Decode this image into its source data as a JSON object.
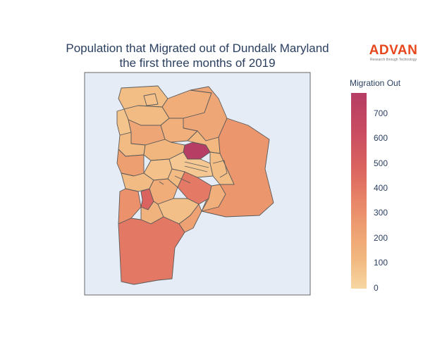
{
  "title": {
    "line1": "Population that Migrated out of Dundalk Maryland",
    "line2": "the first three months of 2019"
  },
  "logo": {
    "word": "ADVAN",
    "tagline": "Research through Technology"
  },
  "colorbar": {
    "title": "Migration Out",
    "range": [
      0,
      790
    ],
    "ticks": [
      "700",
      "600",
      "500",
      "400",
      "300",
      "200",
      "100",
      "0"
    ],
    "colorscale": [
      "#f7d6a2",
      "#f2b880",
      "#eea072",
      "#e88568",
      "#dc6660",
      "#c94c61",
      "#b63d64"
    ]
  },
  "map": {
    "background": "#e5ecf6",
    "border_color": "#5a5a5a",
    "regions": [
      {
        "id": "north-strip-a",
        "value": 110
      },
      {
        "id": "north-small-b",
        "value": 90
      },
      {
        "id": "north-c",
        "value": 200
      },
      {
        "id": "north-d",
        "value": 120
      },
      {
        "id": "north-east-large",
        "value": 230
      },
      {
        "id": "east-large",
        "value": 310
      },
      {
        "id": "west-upper-a",
        "value": 80
      },
      {
        "id": "west-upper-b",
        "value": 230
      },
      {
        "id": "center-upper-a",
        "value": 180
      },
      {
        "id": "center-upper-b",
        "value": 120
      },
      {
        "id": "center-hotspot",
        "value": 790
      },
      {
        "id": "center-right-a",
        "value": 130
      },
      {
        "id": "center-right-b",
        "value": 110
      },
      {
        "id": "center-mid-a",
        "value": 150
      },
      {
        "id": "center-mid-b",
        "value": 60
      },
      {
        "id": "center-mid-c",
        "value": 90
      },
      {
        "id": "west-mid-a",
        "value": 270
      },
      {
        "id": "west-mid-b",
        "value": 120
      },
      {
        "id": "center-south-hotspot",
        "value": 540
      },
      {
        "id": "center-south-a",
        "value": 200
      },
      {
        "id": "center-south-b",
        "value": 440
      },
      {
        "id": "center-south-c",
        "value": 120
      },
      {
        "id": "west-lower-a",
        "value": 330
      },
      {
        "id": "west-lower-b",
        "value": 160
      },
      {
        "id": "center-lower-a",
        "value": 100
      },
      {
        "id": "center-lower-b",
        "value": 250
      },
      {
        "id": "south-large",
        "value": 450
      },
      {
        "id": "south-east-pocket",
        "value": 180
      }
    ]
  }
}
